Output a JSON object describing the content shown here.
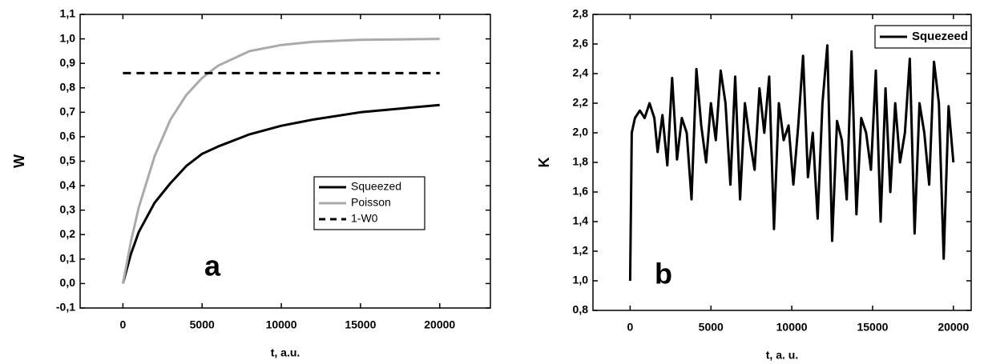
{
  "chart_data": [
    {
      "type": "line",
      "annotation": "a",
      "xlabel": "t, a.u.",
      "ylabel": "W",
      "xlim": [
        -2700,
        23200
      ],
      "xticks": [
        0,
        5000,
        10000,
        15000,
        20000
      ],
      "ylim": [
        -0.1,
        1.1
      ],
      "yticks": [
        {
          "value": -0.1,
          "label": "-0,1"
        },
        {
          "value": 0,
          "label": "0,0"
        },
        {
          "value": 0.1,
          "label": "0,1"
        },
        {
          "value": 0.2,
          "label": "0,2"
        },
        {
          "value": 0.3,
          "label": "0,3"
        },
        {
          "value": 0.4,
          "label": "0,4"
        },
        {
          "value": 0.5,
          "label": "0,5"
        },
        {
          "value": 0.6,
          "label": "0,6"
        },
        {
          "value": 0.7,
          "label": "0,7"
        },
        {
          "value": 0.8,
          "label": "0,8"
        },
        {
          "value": 0.9,
          "label": "0,9"
        },
        {
          "value": 1.0,
          "label": "1,0"
        },
        {
          "value": 1.1,
          "label": "1,1"
        }
      ],
      "legend": "lower right",
      "series": [
        {
          "name": "Squeezed",
          "color": "#000000",
          "linestyle": "solid",
          "x": [
            0,
            500,
            1000,
            2000,
            3000,
            4000,
            5000,
            6000,
            8000,
            10000,
            12000,
            15000,
            17500,
            20000
          ],
          "values": [
            0,
            0.12,
            0.21,
            0.33,
            0.41,
            0.48,
            0.53,
            0.56,
            0.61,
            0.645,
            0.67,
            0.7,
            0.715,
            0.73
          ]
        },
        {
          "name": "Poisson",
          "color": "#aaaaaa",
          "linestyle": "solid",
          "x": [
            0,
            500,
            1000,
            2000,
            3000,
            4000,
            5000,
            6000,
            8000,
            10000,
            12000,
            15000,
            17500,
            20000
          ],
          "values": [
            0,
            0.17,
            0.31,
            0.52,
            0.67,
            0.77,
            0.84,
            0.89,
            0.95,
            0.975,
            0.988,
            0.996,
            0.998,
            1.0
          ]
        },
        {
          "name": "1-W0",
          "color": "#000000",
          "linestyle": "dashed",
          "x": [
            0,
            20000
          ],
          "values": [
            0.86,
            0.86
          ]
        }
      ]
    },
    {
      "type": "line",
      "annotation": "b",
      "xlabel": "t, a. u.",
      "ylabel": "K",
      "xlim": [
        -2300,
        21100
      ],
      "xticks": [
        0,
        5000,
        10000,
        15000,
        20000
      ],
      "ylim": [
        0.8,
        2.8
      ],
      "yticks": [
        {
          "value": 0.8,
          "label": "0,8"
        },
        {
          "value": 1.0,
          "label": "1,0"
        },
        {
          "value": 1.2,
          "label": "1,2"
        },
        {
          "value": 1.4,
          "label": "1,4"
        },
        {
          "value": 1.6,
          "label": "1,6"
        },
        {
          "value": 1.8,
          "label": "1,8"
        },
        {
          "value": 2.0,
          "label": "2,0"
        },
        {
          "value": 2.2,
          "label": "2,2"
        },
        {
          "value": 2.4,
          "label": "2,4"
        },
        {
          "value": 2.6,
          "label": "2,6"
        },
        {
          "value": 2.8,
          "label": "2,8"
        }
      ],
      "legend": "upper right",
      "series": [
        {
          "name": "Squezeed",
          "color": "#000000",
          "linestyle": "solid",
          "x": [
            0,
            100,
            300,
            600,
            900,
            1200,
            1500,
            1700,
            2000,
            2300,
            2600,
            2900,
            3200,
            3500,
            3800,
            4100,
            4400,
            4700,
            5000,
            5300,
            5600,
            5900,
            6200,
            6500,
            6800,
            7100,
            7400,
            7700,
            8000,
            8300,
            8600,
            8900,
            9200,
            9500,
            9800,
            10100,
            10400,
            10700,
            11000,
            11300,
            11600,
            11900,
            12200,
            12500,
            12800,
            13100,
            13400,
            13700,
            14000,
            14300,
            14600,
            14900,
            15200,
            15500,
            15800,
            16100,
            16400,
            16700,
            17000,
            17300,
            17600,
            17900,
            18200,
            18500,
            18800,
            19100,
            19400,
            19700,
            20000
          ],
          "values": [
            1.0,
            2.0,
            2.1,
            2.15,
            2.1,
            2.2,
            2.1,
            1.87,
            2.12,
            1.78,
            2.37,
            1.82,
            2.1,
            2.0,
            1.55,
            2.43,
            2.05,
            1.8,
            2.2,
            1.95,
            2.42,
            2.2,
            1.65,
            2.38,
            1.55,
            2.2,
            1.95,
            1.75,
            2.3,
            2.0,
            2.38,
            1.35,
            2.2,
            1.95,
            2.05,
            1.65,
            2.05,
            2.52,
            1.7,
            2.0,
            1.42,
            2.2,
            2.59,
            1.27,
            2.08,
            1.95,
            1.55,
            2.55,
            1.45,
            2.1,
            2.0,
            1.75,
            2.42,
            1.4,
            2.3,
            1.6,
            2.2,
            1.8,
            2.0,
            2.5,
            1.32,
            2.2,
            2.0,
            1.65,
            2.48,
            2.2,
            1.15,
            2.18,
            1.8
          ]
        }
      ]
    }
  ]
}
